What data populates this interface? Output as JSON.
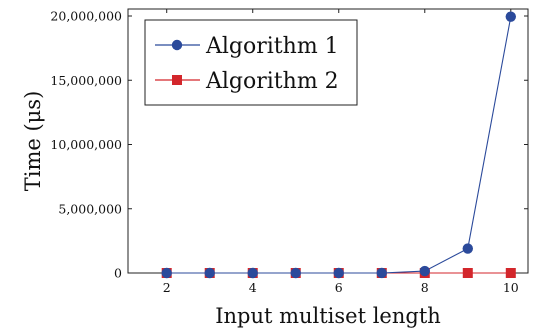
{
  "chart_data": {
    "type": "line",
    "xlabel": "Input multiset length",
    "ylabel": "Time (μs)",
    "xlim": [
      1.1,
      10.4
    ],
    "ylim": [
      0,
      20000000
    ],
    "xticks": [
      2,
      4,
      6,
      8,
      10
    ],
    "xtick_labels": [
      "2",
      "4",
      "6",
      "8",
      "10"
    ],
    "yticks": [
      0,
      5000000,
      10000000,
      15000000,
      20000000
    ],
    "ytick_labels": [
      "0",
      "5,000,000",
      "10,000,000",
      "15,000,000",
      "20,000,000"
    ],
    "grid": false,
    "legend_position": "top-left",
    "x": [
      2,
      3,
      4,
      5,
      6,
      7,
      8,
      9,
      10
    ],
    "series": [
      {
        "name": "Algorithm 1",
        "color": "#2b4a9b",
        "marker": "circle",
        "values": [
          0,
          0,
          0,
          0,
          0,
          1000,
          150000,
          1900000,
          19950000
        ]
      },
      {
        "name": "Algorithm 2",
        "color": "#d3262b",
        "marker": "square",
        "values": [
          0,
          0,
          0,
          0,
          0,
          0,
          0,
          0,
          0
        ]
      }
    ]
  }
}
